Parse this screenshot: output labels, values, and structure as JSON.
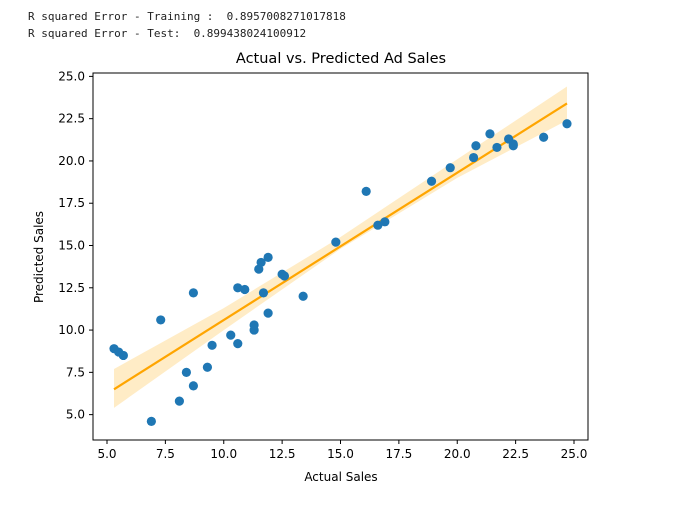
{
  "console": {
    "line1": "R squared Error - Training :  0.8957008271017818",
    "line2": "R squared Error - Test:  0.899438024100912"
  },
  "colors": {
    "points": "#1f77b4",
    "fit_line": "#ffa500",
    "confidence_band": "#ffe6b3"
  },
  "chart_data": {
    "type": "scatter",
    "title": "Actual vs. Predicted Ad Sales",
    "xlabel": "Actual Sales",
    "ylabel": "Predicted Sales",
    "xlim": [
      4.4,
      25.6
    ],
    "ylim": [
      3.5,
      25.2
    ],
    "xticks": [
      "5.0",
      "7.5",
      "10.0",
      "12.5",
      "15.0",
      "17.5",
      "20.0",
      "22.5",
      "25.0"
    ],
    "yticks": [
      "5.0",
      "7.5",
      "10.0",
      "12.5",
      "15.0",
      "17.5",
      "20.0",
      "22.5",
      "25.0"
    ],
    "grid": false,
    "series": [
      {
        "x": [
          5.3,
          5.5,
          5.7,
          6.9,
          7.3,
          8.1,
          8.4,
          8.7,
          8.7,
          9.3,
          9.5,
          10.3,
          10.6,
          10.6,
          10.9,
          11.3,
          11.3,
          11.5,
          11.6,
          11.7,
          11.9,
          11.9,
          12.5,
          12.6,
          13.4,
          14.8,
          16.1,
          16.6,
          16.9,
          18.9,
          19.7,
          20.7,
          20.8,
          21.4,
          21.7,
          22.2,
          22.4,
          22.4,
          23.7,
          24.7
        ],
        "y": [
          8.9,
          8.7,
          8.5,
          4.6,
          10.6,
          5.8,
          7.5,
          6.7,
          12.2,
          7.8,
          9.1,
          9.7,
          12.5,
          9.2,
          12.4,
          10.0,
          10.3,
          13.6,
          14.0,
          12.2,
          14.3,
          11.0,
          13.3,
          13.2,
          12.0,
          15.2,
          18.2,
          16.2,
          16.4,
          18.8,
          19.6,
          20.2,
          20.9,
          21.6,
          20.8,
          21.3,
          21.0,
          20.9,
          21.4,
          22.2
        ]
      }
    ],
    "regression_line": {
      "x": [
        5.3,
        24.7
      ],
      "y": [
        6.5,
        23.4
      ]
    },
    "confidence_band": {
      "x": [
        5.3,
        10.0,
        15.0,
        20.0,
        24.7
      ],
      "lower": [
        5.4,
        10.0,
        14.8,
        19.0,
        22.4
      ],
      "upper": [
        7.7,
        11.3,
        15.5,
        20.1,
        24.4
      ]
    }
  }
}
